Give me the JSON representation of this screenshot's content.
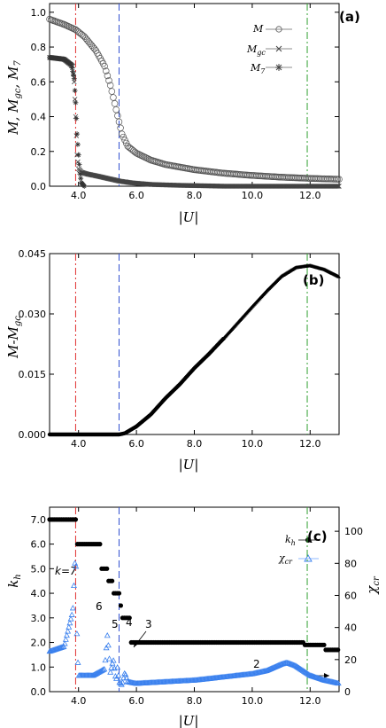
{
  "chart_data": [
    {
      "panel": "(a)",
      "type": "scatter",
      "xlabel": "|U|",
      "ylabel": "M, M_gc, M_7",
      "xlim": [
        3.0,
        13.0
      ],
      "ylim": [
        0.0,
        1.05
      ],
      "xticks": [
        "4.0",
        "6.0",
        "8.0",
        "10.0",
        "12.0"
      ],
      "yticks": [
        "0.0",
        "0.2",
        "0.4",
        "0.6",
        "0.8",
        "1.0"
      ],
      "legend": "top-right",
      "legend_entries": [
        "M",
        "M_gc",
        "M_7"
      ],
      "vlines": [
        {
          "x": 3.9,
          "color": "#e03030",
          "style": "dash-dot"
        },
        {
          "x": 5.4,
          "color": "#3050d0",
          "style": "dashed"
        },
        {
          "x": 11.9,
          "color": "#30a030",
          "style": "dash-dot"
        }
      ],
      "series": [
        {
          "name": "M",
          "marker": "circle",
          "x": [
            3.0,
            3.5,
            3.9,
            4.2,
            4.6,
            4.9,
            5.1,
            5.3,
            5.5,
            5.7,
            6.0,
            6.5,
            7.0,
            8.0,
            9.0,
            10.0,
            11.0,
            12.0,
            13.0
          ],
          "y": [
            0.96,
            0.93,
            0.9,
            0.86,
            0.78,
            0.69,
            0.58,
            0.44,
            0.3,
            0.23,
            0.19,
            0.15,
            0.125,
            0.095,
            0.075,
            0.062,
            0.052,
            0.045,
            0.04
          ]
        },
        {
          "name": "M_gc",
          "marker": "cross",
          "x": [
            3.0,
            3.5,
            3.8,
            3.85,
            3.9,
            3.95,
            4.0,
            4.1,
            4.3,
            4.6,
            5.0,
            5.4,
            5.8,
            6.5,
            7.5,
            8.5,
            9.0,
            10.0,
            11.0,
            12.0,
            13.0
          ],
          "y": [
            0.74,
            0.73,
            0.69,
            0.6,
            0.4,
            0.18,
            0.1,
            0.08,
            0.07,
            0.06,
            0.045,
            0.03,
            0.02,
            0.01,
            0.005,
            0.002,
            0.0,
            0.0,
            0.0,
            0.0,
            0.0
          ]
        },
        {
          "name": "M_7",
          "marker": "star",
          "x": [
            3.0,
            3.5,
            3.75,
            3.85,
            3.9,
            3.95,
            4.0,
            4.05,
            4.1,
            4.2
          ],
          "y": [
            0.74,
            0.73,
            0.7,
            0.62,
            0.48,
            0.3,
            0.18,
            0.07,
            0.02,
            0.0
          ]
        }
      ]
    },
    {
      "panel": "(b)",
      "type": "scatter",
      "xlabel": "|U|",
      "ylabel": "M-M_gc",
      "xlim": [
        3.0,
        13.0
      ],
      "ylim": [
        0.0,
        0.045
      ],
      "xticks": [
        "4.0",
        "6.0",
        "8.0",
        "10.0",
        "12.0"
      ],
      "yticks": [
        "0.000",
        "0.015",
        "0.030",
        "0.045"
      ],
      "vlines": [
        {
          "x": 3.9,
          "color": "#e03030",
          "style": "dash-dot"
        },
        {
          "x": 5.4,
          "color": "#3050d0",
          "style": "dashed"
        },
        {
          "x": 11.9,
          "color": "#30a030",
          "style": "dash-dot"
        }
      ],
      "series": [
        {
          "marker": "circle-filled",
          "x": [
            3.0,
            4.0,
            5.0,
            5.4,
            5.6,
            6.0,
            6.5,
            7.0,
            7.5,
            8.0,
            8.5,
            9.0
          ],
          "y": [
            0.0,
            0.0,
            0.0,
            0.0,
            0.0003,
            0.002,
            0.005,
            0.009,
            0.0125,
            0.0165,
            0.02,
            0.0238
          ]
        },
        {
          "marker": "triangle",
          "x": [
            9.0,
            9.5,
            10.0,
            10.5,
            11.0,
            11.5,
            12.0,
            12.5,
            13.0
          ],
          "y": [
            0.0238,
            0.0278,
            0.0318,
            0.0357,
            0.0393,
            0.0415,
            0.042,
            0.041,
            0.0392
          ]
        }
      ]
    },
    {
      "panel": "(c)",
      "type": "scatter",
      "xlabel": "|U|",
      "ylabel": "k_h",
      "ylabel_right": "χ_cr",
      "xlim": [
        3.0,
        13.0
      ],
      "ylim": [
        0.0,
        7.5
      ],
      "ylim_right": [
        0,
        115
      ],
      "xticks": [
        "4.0",
        "6.0",
        "8.0",
        "10.0",
        "12.0"
      ],
      "yticks": [
        "0.0",
        "1.0",
        "2.0",
        "3.0",
        "4.0",
        "5.0",
        "6.0",
        "7.0"
      ],
      "yticks_right": [
        "0",
        "20",
        "40",
        "60",
        "80",
        "100"
      ],
      "legend": "top-right",
      "legend_entries": [
        "k_h",
        "χ_cr"
      ],
      "annotations": [
        "k=7",
        "6",
        "5",
        "4",
        "3",
        "2"
      ],
      "vlines": [
        {
          "x": 3.9,
          "color": "#e03030",
          "style": "dash-dot"
        },
        {
          "x": 5.4,
          "color": "#3050d0",
          "style": "dashed"
        },
        {
          "x": 11.9,
          "color": "#30a030",
          "style": "dash-dot"
        }
      ],
      "series": [
        {
          "name": "k_h",
          "marker": "circle-filled",
          "x": [
            3.0,
            3.9,
            3.95,
            4.7,
            4.75,
            5.0,
            5.2,
            5.4,
            5.5,
            5.75,
            5.8,
            8.0,
            10.0,
            11.0,
            11.8,
            12.5,
            13.0
          ],
          "y": [
            7.0,
            7.0,
            6.0,
            6.0,
            5.0,
            4.5,
            4.0,
            3.5,
            3.0,
            3.0,
            2.0,
            2.0,
            2.0,
            2.0,
            1.9,
            1.7,
            1.5
          ]
        },
        {
          "name": "χ_cr",
          "marker": "triangle-open",
          "x": [
            3.0,
            3.5,
            3.8,
            3.9,
            3.95,
            4.0,
            4.5,
            4.9,
            5.0,
            5.1,
            5.2,
            5.3,
            5.35,
            5.4,
            5.5,
            5.6,
            5.7,
            6.0,
            7.0,
            8.0,
            9.0,
            10.0,
            10.5,
            11.0,
            11.2,
            11.5,
            12.0,
            12.5,
            13.0
          ],
          "y": [
            25,
            28,
            50,
            90,
            30,
            10,
            10,
            14,
            36,
            12,
            20,
            6,
            16,
            6,
            4,
            12,
            6,
            5,
            6,
            7,
            9,
            11,
            13,
            17,
            18,
            16,
            10,
            7,
            5
          ]
        }
      ]
    }
  ]
}
